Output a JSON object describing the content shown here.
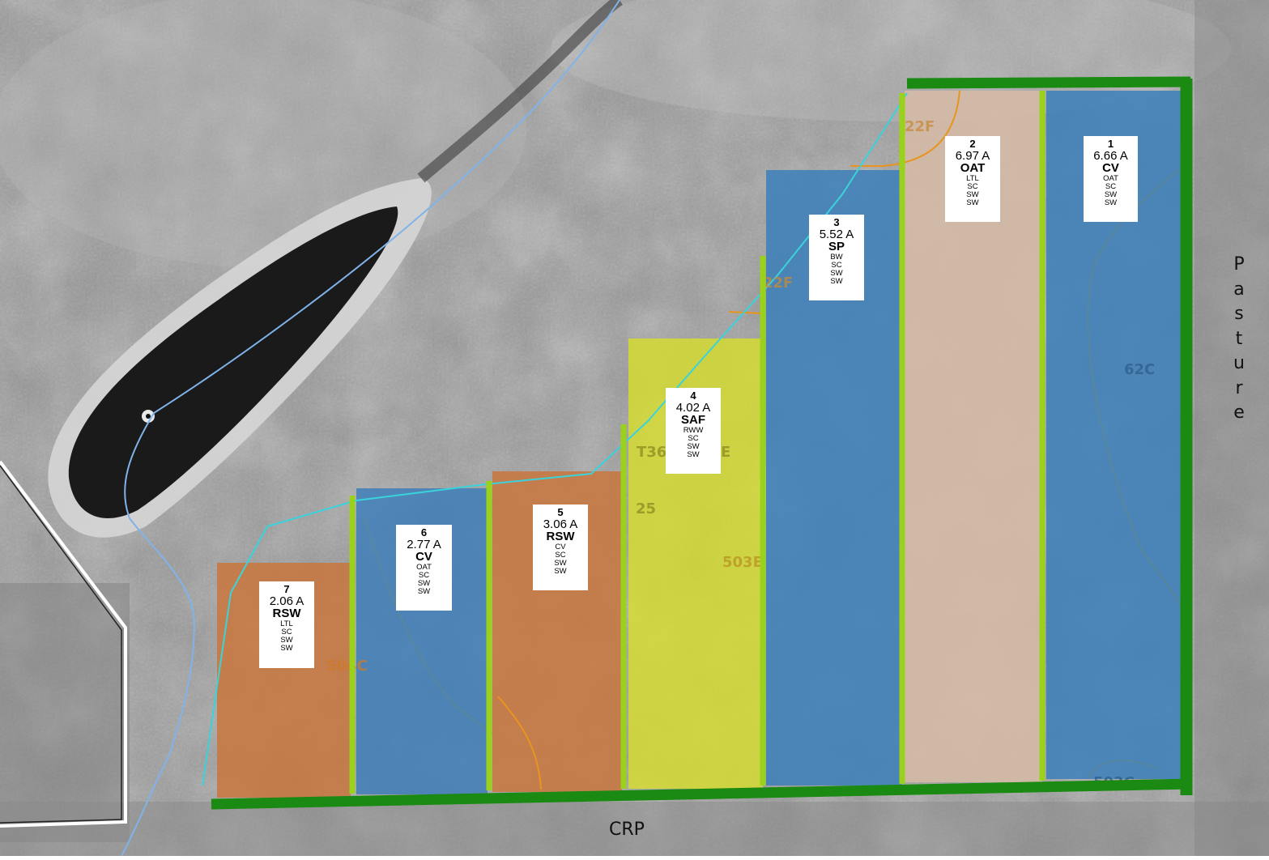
{
  "map": {
    "boundary_labels": {
      "east": "Pasture",
      "south": "CRP"
    },
    "soil_codes": [
      "22F",
      "22F",
      "62C",
      "T36",
      "E",
      "25",
      "503E",
      "504C",
      "503C"
    ],
    "colors": {
      "boundary": "#1a8a12",
      "field_divider": "#9ad11a",
      "blue_field": "#3f7fb8",
      "orange_field": "#c9773d",
      "yellow_field": "#d8df2c",
      "tan_field": "#d4baa5",
      "water_line": "#7fb3ea",
      "cyan_line": "#39d3dc",
      "soil_line": "#e8941e"
    },
    "fields": [
      {
        "number": "1",
        "acres": "6.66 A",
        "crop": "CV",
        "history": [
          "OAT",
          "SC",
          "SW",
          "SW"
        ]
      },
      {
        "number": "2",
        "acres": "6.97 A",
        "crop": "OAT",
        "history": [
          "LTL",
          "SC",
          "SW",
          "SW"
        ]
      },
      {
        "number": "3",
        "acres": "5.52 A",
        "crop": "SP",
        "history": [
          "BW",
          "SC",
          "SW",
          "SW"
        ]
      },
      {
        "number": "4",
        "acres": "4.02 A",
        "crop": "SAF",
        "history": [
          "RWW",
          "SC",
          "SW",
          "SW"
        ]
      },
      {
        "number": "5",
        "acres": "3.06 A",
        "crop": "RSW",
        "history": [
          "CV",
          "SC",
          "SW",
          "SW"
        ]
      },
      {
        "number": "6",
        "acres": "2.77 A",
        "crop": "CV",
        "history": [
          "OAT",
          "SC",
          "SW",
          "SW"
        ]
      },
      {
        "number": "7",
        "acres": "2.06 A",
        "crop": "RSW",
        "history": [
          "LTL",
          "SC",
          "SW",
          "SW"
        ]
      }
    ]
  }
}
